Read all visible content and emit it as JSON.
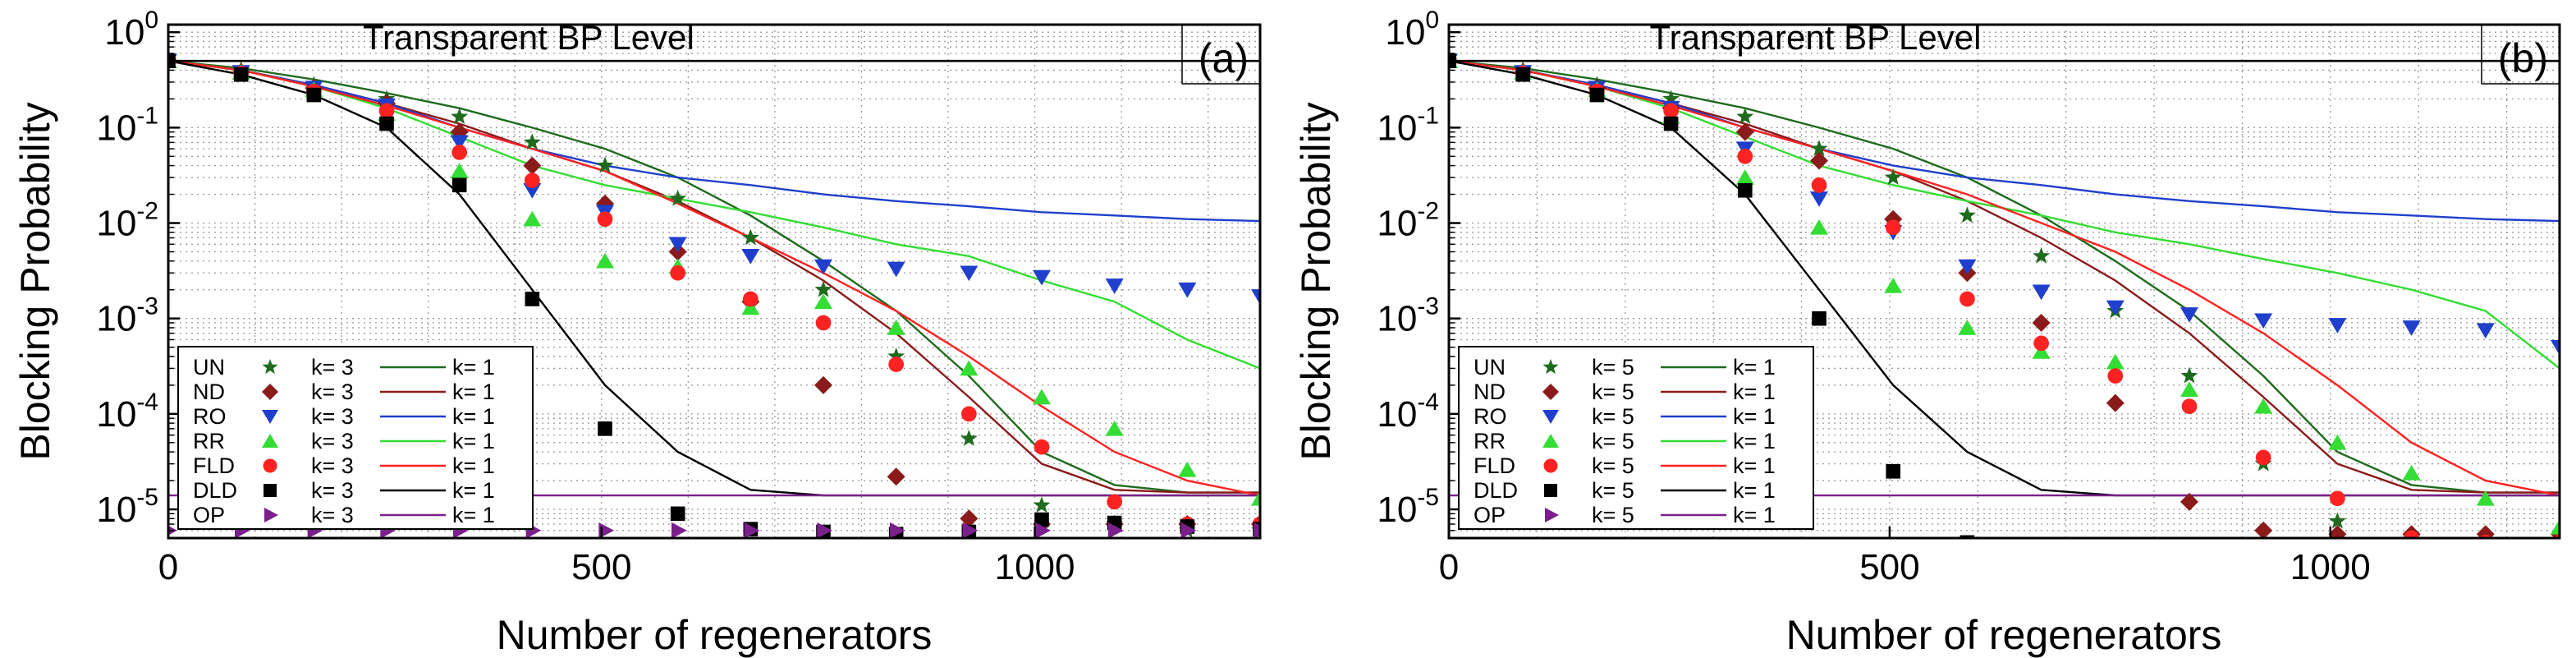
{
  "chart_data": [
    {
      "type": "scatter",
      "panel_label": "(a)",
      "xlabel": "Number of regenerators",
      "ylabel": "Blocking Probability",
      "xlim": [
        0,
        1260
      ],
      "ylim": [
        5e-06,
        1.2
      ],
      "yscale": "log",
      "xticks": [
        0,
        500,
        1000
      ],
      "yticks": [
        {
          "v": 1,
          "exp": "0"
        },
        {
          "v": 0.1,
          "exp": "-1"
        },
        {
          "v": 0.01,
          "exp": "-2"
        },
        {
          "v": 0.001,
          "exp": "-3"
        },
        {
          "v": 0.0001,
          "exp": "-4"
        },
        {
          "v": 1e-05,
          "exp": "-5"
        }
      ],
      "grid": true,
      "legend_position": "lower-left",
      "annotation": {
        "text": "Transparent BP Level",
        "y": 0.5
      },
      "k_marker": "k= 3",
      "k_line": "k= 1",
      "series": [
        {
          "name": "UN",
          "color": "#1e6b1e",
          "marker": "star",
          "x": [
            0,
            84,
            168,
            252,
            336,
            420,
            504,
            588,
            672,
            756,
            840,
            924,
            1008,
            1092,
            1176,
            1260
          ],
          "y": [
            0.5,
            0.4,
            0.28,
            0.2,
            0.13,
            0.07,
            0.04,
            0.018,
            0.007,
            0.002,
            0.0004,
            5.5e-05,
            1.1e-05,
            7e-06,
            6e-06,
            6e-06
          ],
          "line_x": [
            0,
            84,
            168,
            252,
            336,
            420,
            504,
            588,
            672,
            756,
            840,
            924,
            1008,
            1092,
            1176,
            1260
          ],
          "line_y": [
            0.5,
            0.42,
            0.32,
            0.23,
            0.16,
            0.1,
            0.06,
            0.03,
            0.012,
            0.004,
            0.0012,
            0.00025,
            4e-05,
            1.8e-05,
            1.5e-05,
            1.5e-05
          ]
        },
        {
          "name": "ND",
          "color": "#8b1a1a",
          "marker": "diamond",
          "x": [
            0,
            84,
            168,
            252,
            336,
            420,
            504,
            588,
            672,
            756,
            840,
            924,
            1008,
            1092,
            1176,
            1260
          ],
          "y": [
            0.5,
            0.38,
            0.26,
            0.18,
            0.09,
            0.04,
            0.016,
            0.005,
            0.0015,
            0.0002,
            2.2e-05,
            8e-06,
            7e-06,
            7e-06,
            7e-06,
            7e-06
          ],
          "line_x": [
            0,
            84,
            168,
            252,
            336,
            420,
            504,
            588,
            672,
            756,
            840,
            924,
            1008,
            1092,
            1176,
            1260
          ],
          "line_y": [
            0.5,
            0.4,
            0.28,
            0.18,
            0.11,
            0.06,
            0.035,
            0.017,
            0.007,
            0.0025,
            0.0007,
            0.00015,
            3e-05,
            1.6e-05,
            1.5e-05,
            1.5e-05
          ]
        },
        {
          "name": "RO",
          "color": "#1f3fcc",
          "marker": "triangle-down",
          "x": [
            0,
            84,
            168,
            252,
            336,
            420,
            504,
            588,
            672,
            756,
            840,
            924,
            1008,
            1092,
            1176,
            1260
          ],
          "y": [
            0.5,
            0.38,
            0.26,
            0.17,
            0.07,
            0.022,
            0.013,
            0.006,
            0.0045,
            0.0035,
            0.0033,
            0.003,
            0.0027,
            0.0022,
            0.002,
            0.0017
          ],
          "line_x": [
            0,
            84,
            168,
            252,
            336,
            420,
            504,
            588,
            672,
            756,
            840,
            924,
            1008,
            1092,
            1176,
            1260
          ],
          "line_y": [
            0.5,
            0.4,
            0.28,
            0.18,
            0.1,
            0.06,
            0.04,
            0.03,
            0.025,
            0.02,
            0.017,
            0.015,
            0.013,
            0.012,
            0.011,
            0.0105
          ]
        },
        {
          "name": "RR",
          "color": "#33dd33",
          "marker": "triangle-up",
          "x": [
            0,
            84,
            168,
            252,
            336,
            420,
            504,
            588,
            672,
            756,
            840,
            924,
            1008,
            1092,
            1176,
            1260
          ],
          "y": [
            0.5,
            0.38,
            0.25,
            0.14,
            0.035,
            0.011,
            0.004,
            0.0035,
            0.0013,
            0.0015,
            0.0008,
            0.0003,
            0.00015,
            7e-05,
            2.6e-05,
            1.3e-05
          ],
          "line_x": [
            0,
            84,
            168,
            252,
            336,
            420,
            504,
            588,
            672,
            756,
            840,
            924,
            1008,
            1092,
            1176,
            1260
          ],
          "line_y": [
            0.5,
            0.4,
            0.27,
            0.16,
            0.08,
            0.04,
            0.025,
            0.018,
            0.013,
            0.009,
            0.006,
            0.0045,
            0.0025,
            0.0015,
            0.0006,
            0.0003
          ]
        },
        {
          "name": "FLD",
          "color": "#ff2222",
          "marker": "circle",
          "x": [
            0,
            84,
            168,
            252,
            336,
            420,
            504,
            588,
            672,
            756,
            840,
            924,
            1008,
            1092,
            1176,
            1260
          ],
          "y": [
            0.5,
            0.37,
            0.24,
            0.15,
            0.055,
            0.028,
            0.011,
            0.003,
            0.0016,
            0.0009,
            0.00033,
            0.0001,
            4.5e-05,
            1.2e-05,
            7e-06,
            7e-06
          ],
          "line_x": [
            0,
            84,
            168,
            252,
            336,
            420,
            504,
            588,
            672,
            756,
            840,
            924,
            1008,
            1092,
            1176,
            1260
          ],
          "line_y": [
            0.5,
            0.4,
            0.27,
            0.17,
            0.1,
            0.06,
            0.035,
            0.016,
            0.007,
            0.003,
            0.0012,
            0.0004,
            0.00012,
            4e-05,
            2e-05,
            1.4e-05
          ]
        },
        {
          "name": "DLD",
          "color": "#000000",
          "marker": "square",
          "x": [
            0,
            84,
            168,
            252,
            336,
            420,
            504,
            588,
            672,
            756,
            840,
            924,
            1008,
            1092,
            1176,
            1260
          ],
          "y": [
            0.5,
            0.36,
            0.22,
            0.11,
            0.025,
            0.0016,
            7e-05,
            9e-06,
            6.2e-06,
            5.8e-06,
            5.5e-06,
            5.8e-06,
            7.8e-06,
            7.2e-06,
            6.6e-06,
            6.2e-06
          ],
          "line_x": [
            0,
            84,
            168,
            252,
            336,
            420,
            504,
            588,
            672,
            756,
            840,
            924,
            1008,
            1092,
            1176,
            1260
          ],
          "line_y": [
            0.5,
            0.36,
            0.22,
            0.1,
            0.02,
            0.002,
            0.0002,
            4e-05,
            1.6e-05,
            1.4e-05,
            1.4e-05,
            1.4e-05,
            1.4e-05,
            1.4e-05,
            1.4e-05,
            1.4e-05
          ]
        },
        {
          "name": "OP",
          "color": "#7a1f8c",
          "marker": "triangle-right",
          "x": [
            0,
            84,
            168,
            252,
            336,
            420,
            504,
            588,
            672,
            756,
            840,
            924,
            1008,
            1092,
            1176,
            1260
          ],
          "y": [
            6e-06,
            6e-06,
            6e-06,
            6e-06,
            6e-06,
            6e-06,
            6e-06,
            6e-06,
            6e-06,
            6e-06,
            6e-06,
            6e-06,
            6e-06,
            6e-06,
            6e-06,
            6e-06
          ],
          "line_x": [
            0,
            1260
          ],
          "line_y": [
            1.4e-05,
            1.4e-05
          ]
        }
      ]
    },
    {
      "type": "scatter",
      "panel_label": "(b)",
      "xlabel": "Number of regenerators",
      "ylabel": "Blocking Probability",
      "xlim": [
        0,
        1260
      ],
      "ylim": [
        5e-06,
        1.2
      ],
      "yscale": "log",
      "xticks": [
        0,
        500,
        1000
      ],
      "yticks": [
        {
          "v": 1,
          "exp": "0"
        },
        {
          "v": 0.1,
          "exp": "-1"
        },
        {
          "v": 0.01,
          "exp": "-2"
        },
        {
          "v": 0.001,
          "exp": "-3"
        },
        {
          "v": 0.0001,
          "exp": "-4"
        },
        {
          "v": 1e-05,
          "exp": "-5"
        }
      ],
      "grid": true,
      "legend_position": "lower-left",
      "annotation": {
        "text": "Transparent BP Level",
        "y": 0.5
      },
      "k_marker": "k= 5",
      "k_line": "k= 1",
      "series": [
        {
          "name": "UN",
          "color": "#1e6b1e",
          "marker": "star",
          "x": [
            0,
            84,
            168,
            252,
            336,
            420,
            504,
            588,
            672,
            756,
            840,
            924,
            1008,
            1092,
            1176,
            1260
          ],
          "y": [
            0.5,
            0.4,
            0.28,
            0.2,
            0.13,
            0.06,
            0.03,
            0.012,
            0.0045,
            0.0012,
            0.00025,
            3e-05,
            7.5e-06,
            5e-06,
            4.5e-06,
            4.5e-06
          ],
          "line_x": [
            0,
            84,
            168,
            252,
            336,
            420,
            504,
            588,
            672,
            756,
            840,
            924,
            1008,
            1092,
            1176,
            1260
          ],
          "line_y": [
            0.5,
            0.42,
            0.32,
            0.23,
            0.16,
            0.1,
            0.06,
            0.03,
            0.012,
            0.004,
            0.0012,
            0.00025,
            4e-05,
            1.8e-05,
            1.5e-05,
            1.5e-05
          ]
        },
        {
          "name": "ND",
          "color": "#8b1a1a",
          "marker": "diamond",
          "x": [
            0,
            84,
            168,
            252,
            336,
            420,
            504,
            588,
            672,
            756,
            840,
            924,
            1008,
            1092,
            1176,
            1260
          ],
          "y": [
            0.5,
            0.38,
            0.26,
            0.16,
            0.09,
            0.045,
            0.011,
            0.003,
            0.0009,
            0.00013,
            1.2e-05,
            6e-06,
            5.5e-06,
            5.5e-06,
            5.5e-06,
            5.5e-06
          ],
          "line_x": [
            0,
            84,
            168,
            252,
            336,
            420,
            504,
            588,
            672,
            756,
            840,
            924,
            1008,
            1092,
            1176,
            1260
          ],
          "line_y": [
            0.5,
            0.4,
            0.28,
            0.18,
            0.11,
            0.06,
            0.035,
            0.017,
            0.007,
            0.0025,
            0.0007,
            0.00015,
            3e-05,
            1.6e-05,
            1.5e-05,
            1.5e-05
          ]
        },
        {
          "name": "RO",
          "color": "#1f3fcc",
          "marker": "triangle-down",
          "x": [
            0,
            84,
            168,
            252,
            336,
            420,
            504,
            588,
            672,
            756,
            840,
            924,
            1008,
            1092,
            1176,
            1260
          ],
          "y": [
            0.5,
            0.38,
            0.26,
            0.16,
            0.06,
            0.018,
            0.008,
            0.0035,
            0.0019,
            0.0013,
            0.0011,
            0.00095,
            0.00085,
            0.0008,
            0.00075,
            0.0005
          ],
          "line_x": [
            0,
            84,
            168,
            252,
            336,
            420,
            504,
            588,
            672,
            756,
            840,
            924,
            1008,
            1092,
            1176,
            1260
          ],
          "line_y": [
            0.5,
            0.4,
            0.28,
            0.18,
            0.1,
            0.06,
            0.04,
            0.03,
            0.025,
            0.02,
            0.017,
            0.015,
            0.013,
            0.012,
            0.011,
            0.0105
          ]
        },
        {
          "name": "RR",
          "color": "#33dd33",
          "marker": "triangle-up",
          "x": [
            0,
            84,
            168,
            252,
            336,
            420,
            504,
            588,
            672,
            756,
            840,
            924,
            1008,
            1092,
            1176,
            1260
          ],
          "y": [
            0.5,
            0.38,
            0.25,
            0.13,
            0.03,
            0.009,
            0.0022,
            0.0008,
            0.00045,
            0.00035,
            0.00018,
            0.00012,
            5e-05,
            2.4e-05,
            1.3e-05,
            6.5e-06
          ],
          "line_x": [
            0,
            84,
            168,
            252,
            336,
            420,
            504,
            588,
            672,
            756,
            840,
            924,
            1008,
            1092,
            1176,
            1260
          ],
          "line_y": [
            0.5,
            0.4,
            0.27,
            0.16,
            0.08,
            0.04,
            0.025,
            0.017,
            0.012,
            0.008,
            0.006,
            0.0042,
            0.003,
            0.002,
            0.0012,
            0.0003
          ]
        },
        {
          "name": "FLD",
          "color": "#ff2222",
          "marker": "circle",
          "x": [
            0,
            84,
            168,
            252,
            336,
            420,
            504,
            588,
            672,
            756,
            840,
            924,
            1008,
            1092,
            1176,
            1260
          ],
          "y": [
            0.5,
            0.37,
            0.24,
            0.15,
            0.05,
            0.025,
            0.009,
            0.0016,
            0.00055,
            0.00025,
            0.00012,
            3.5e-05,
            1.3e-05,
            5e-06,
            4.5e-06,
            4.5e-06
          ],
          "line_x": [
            0,
            84,
            168,
            252,
            336,
            420,
            504,
            588,
            672,
            756,
            840,
            924,
            1008,
            1092,
            1176,
            1260
          ],
          "line_y": [
            0.5,
            0.4,
            0.27,
            0.17,
            0.1,
            0.06,
            0.035,
            0.02,
            0.01,
            0.005,
            0.002,
            0.0007,
            0.0002,
            5e-05,
            2e-05,
            1.4e-05
          ]
        },
        {
          "name": "DLD",
          "color": "#000000",
          "marker": "square",
          "x": [
            0,
            84,
            168,
            252,
            336,
            420,
            504,
            588,
            672,
            756,
            840,
            924,
            1008,
            1092,
            1176,
            1260
          ],
          "y": [
            0.5,
            0.36,
            0.22,
            0.11,
            0.022,
            0.001,
            2.5e-05,
            4.5e-06,
            4.2e-06,
            4.2e-06,
            4.2e-06,
            4.2e-06,
            4.2e-06,
            4.2e-06,
            4.2e-06,
            4.2e-06
          ],
          "line_x": [
            0,
            84,
            168,
            252,
            336,
            420,
            504,
            588,
            672,
            756,
            840,
            924,
            1008,
            1092,
            1176,
            1260
          ],
          "line_y": [
            0.5,
            0.36,
            0.22,
            0.1,
            0.02,
            0.002,
            0.0002,
            4e-05,
            1.6e-05,
            1.4e-05,
            1.4e-05,
            1.4e-05,
            1.4e-05,
            1.4e-05,
            1.4e-05,
            1.4e-05
          ]
        },
        {
          "name": "OP",
          "color": "#7a1f8c",
          "marker": "triangle-right",
          "x": [],
          "y": [],
          "line_x": [
            0,
            1260
          ],
          "line_y": [
            1.4e-05,
            1.4e-05
          ]
        }
      ]
    }
  ]
}
